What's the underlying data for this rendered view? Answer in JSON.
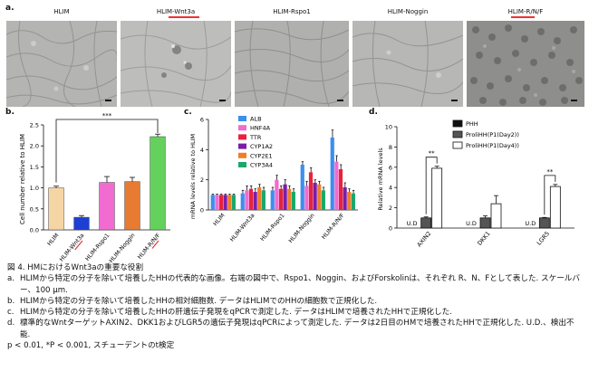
{
  "panel_labels": {
    "a": "a.",
    "b": "b.",
    "c": "c.",
    "d": "d."
  },
  "micrographs": [
    {
      "title": "HLIM",
      "underline": false
    },
    {
      "title": "HLIM-Wnt3a",
      "underline": true
    },
    {
      "title": "HLIM-Rspo1",
      "underline": false
    },
    {
      "title": "HLIM-Noggin",
      "underline": false
    },
    {
      "title": "HLIM-R/N/F",
      "underline": true
    }
  ],
  "colors": {
    "b_bars": [
      "#f5d5a3",
      "#1d3fd6",
      "#f26bd0",
      "#e77b31",
      "#63d15c"
    ],
    "c_series": [
      "#3b8fef",
      "#f26bd0",
      "#e8223c",
      "#7b1ea6",
      "#f07d2a",
      "#1aa86a"
    ],
    "d_series": [
      "#111111",
      "#555555",
      "#ffffff"
    ],
    "underline": "#e33"
  },
  "chart_data": [
    {
      "type": "bar",
      "panel": "b",
      "ylabel": "Cell number relative to HLIM",
      "ylim": [
        0,
        2.5
      ],
      "yticks": [
        "0.0",
        "0.5",
        "1.0",
        "1.5",
        "2.0",
        "2.5"
      ],
      "categories": [
        "HLIM",
        "HLIM-Wnt3a",
        "HLIM-Rspo1",
        "HLIM-Noggin",
        "HLIM-R/N/F"
      ],
      "values": [
        1.0,
        0.3,
        1.13,
        1.15,
        2.22
      ],
      "errors": [
        0.04,
        0.04,
        0.14,
        0.1,
        0.06
      ],
      "significance": {
        "from": 0,
        "to": 4,
        "label": "***"
      }
    },
    {
      "type": "bar",
      "panel": "c",
      "ylabel": "mRNA levels relative to HLIM",
      "ylim": [
        0,
        6
      ],
      "yticks": [
        "0",
        "2",
        "4",
        "6"
      ],
      "categories": [
        "HLIM",
        "HLIM-Wnt3a",
        "HLIM-Rspo1",
        "HLIM-Noggin",
        "HLIM-R/N/F"
      ],
      "series": [
        {
          "name": "ALB",
          "values": [
            1.0,
            1.1,
            1.3,
            3.0,
            4.8
          ],
          "errors": [
            0.05,
            0.2,
            0.2,
            0.2,
            0.5
          ]
        },
        {
          "name": "HNF4A",
          "values": [
            1.0,
            1.3,
            2.0,
            1.6,
            3.2
          ],
          "errors": [
            0.05,
            0.3,
            0.3,
            0.3,
            0.4
          ]
        },
        {
          "name": "TTR",
          "values": [
            1.0,
            1.4,
            1.4,
            2.5,
            2.7
          ],
          "errors": [
            0.05,
            0.2,
            0.2,
            0.3,
            0.3
          ]
        },
        {
          "name": "CYP1A2",
          "values": [
            1.0,
            1.2,
            1.7,
            1.8,
            1.5
          ],
          "errors": [
            0.05,
            0.2,
            0.3,
            0.2,
            0.3
          ]
        },
        {
          "name": "CYP2E1",
          "values": [
            1.0,
            1.5,
            1.4,
            1.7,
            1.2
          ],
          "errors": [
            0.05,
            0.2,
            0.2,
            0.2,
            0.2
          ]
        },
        {
          "name": "CYP3A4",
          "values": [
            1.0,
            1.3,
            1.2,
            1.3,
            1.1
          ],
          "errors": [
            0.05,
            0.2,
            0.2,
            0.2,
            0.2
          ]
        }
      ]
    },
    {
      "type": "bar",
      "panel": "d",
      "ylabel": "Relative mRNA levels",
      "ylim": [
        0,
        10
      ],
      "yticks": [
        "0",
        "2",
        "4",
        "6",
        "8",
        "10"
      ],
      "categories": [
        "AXIN2",
        "DKK1",
        "LGR5"
      ],
      "series": [
        {
          "name": "PHH",
          "values": [
            0,
            0,
            0
          ],
          "labels": [
            "U.D",
            "U.D",
            "U.D"
          ]
        },
        {
          "name": "ProliHH(P1(Day2))",
          "values": [
            1.0,
            1.0,
            1.0
          ],
          "errors": [
            0.1,
            0.2,
            0.05
          ]
        },
        {
          "name": "ProliHH(P1(Day4))",
          "values": [
            5.9,
            2.4,
            4.1
          ],
          "errors": [
            0.2,
            0.8,
            0.2
          ]
        }
      ],
      "significance": [
        {
          "category": "AXIN2",
          "label": "**"
        },
        {
          "category": "LGR5",
          "label": "**"
        }
      ]
    }
  ],
  "caption": {
    "title": "図 4. HMにおけるWnt3aの重要な役割",
    "items": [
      {
        "key": "a.",
        "text": "HLIMから特定の分子を除いて培養したHHの代表的な画像。右端の図中で、Rspo1、Noggin、およびForskolinは、それぞれ R、N、Fとして表した. スケールバー、100 μm."
      },
      {
        "key": "b.",
        "text": "HLIMから特定の分子を除いて培養したHHの相対細胞数. データはHLIMでのHHの細胞数で正規化した."
      },
      {
        "key": "c.",
        "text": "HLIMから特定の分子を除いて培養したHHの肝遺伝子発現をqPCRで測定した. データはHLIMで培養されたHHで正規化した."
      },
      {
        "key": "d.",
        "text": "標準的なWntターゲットAXIN2、DKK1およびLGR5の遺伝子発現はqPCRによって測定した. データは2日目のHMで培養されたHHで正規化した. U.D.、検出不能."
      }
    ],
    "footnote": "p < 0.01, *P < 0.001, スチューデントのt検定"
  }
}
